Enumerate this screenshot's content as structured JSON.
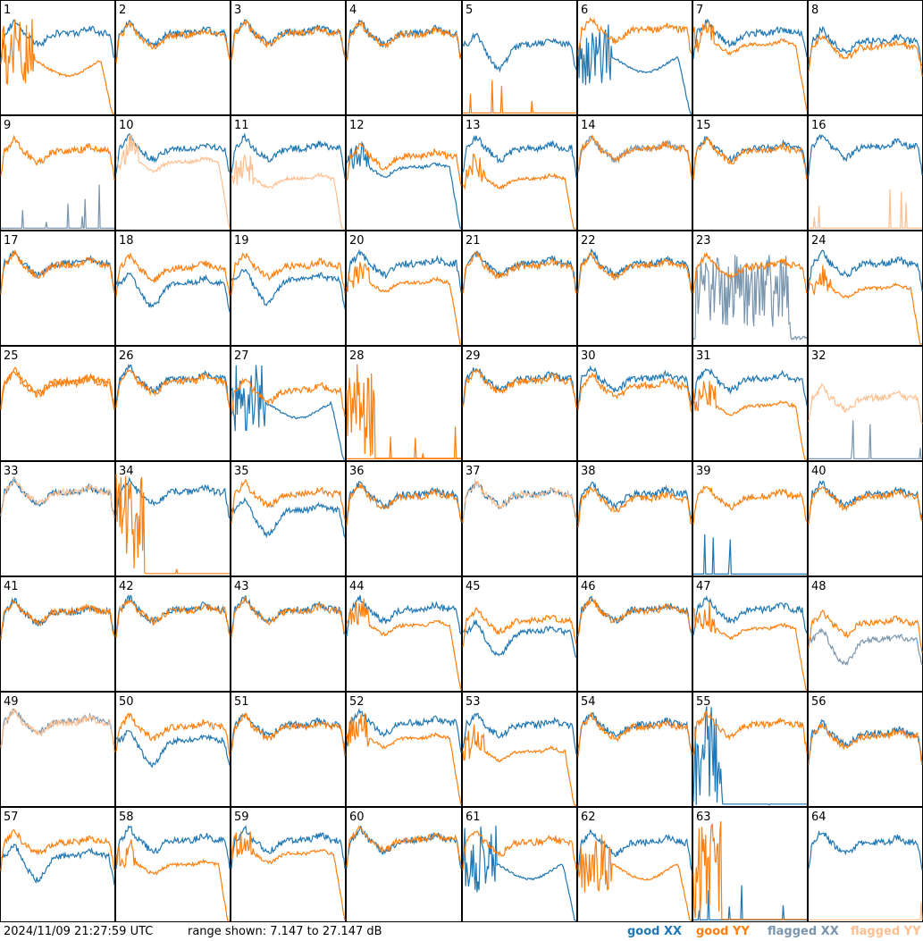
{
  "chart_data": {
    "type": "line",
    "timestamp": "2024/11/09 21:27:59 UTC",
    "range_text": "range shown: 7.147 to 27.147 dB",
    "range_db": [
      7.147,
      27.147
    ],
    "legend": [
      {
        "key": "gx",
        "label": "good XX",
        "color": "#1f77b4"
      },
      {
        "key": "gy",
        "label": "good YY",
        "color": "#ff7f0e"
      },
      {
        "key": "fx",
        "label": "flagged XX",
        "color": "#7a96ae"
      },
      {
        "key": "fy",
        "label": "flagged YY",
        "color": "#ffbf8f"
      }
    ],
    "panels": [
      {
        "label": "1",
        "x": {
          "s": "gx",
          "sh": "base",
          "lv": 0.72
        },
        "y": {
          "s": "gy",
          "sh": "noisy_drop",
          "lv": 0.42
        }
      },
      {
        "label": "2",
        "x": {
          "s": "gx",
          "sh": "base",
          "lv": 0.72
        },
        "y": {
          "s": "gy",
          "sh": "base",
          "lv": 0.7
        }
      },
      {
        "label": "3",
        "x": {
          "s": "gx",
          "sh": "base",
          "lv": 0.73
        },
        "y": {
          "s": "gy",
          "sh": "base",
          "lv": 0.72
        }
      },
      {
        "label": "4",
        "x": {
          "s": "gx",
          "sh": "base",
          "lv": 0.72
        },
        "y": {
          "s": "gy",
          "sh": "base",
          "lv": 0.71
        }
      },
      {
        "label": "5",
        "x": {
          "s": "gx",
          "sh": "dip",
          "lv": 0.62
        },
        "y": {
          "s": "gy",
          "sh": "spikes_low",
          "lv": 0.05
        }
      },
      {
        "label": "6",
        "x": {
          "s": "gx",
          "sh": "noisy_drop",
          "lv": 0.45
        },
        "y": {
          "s": "gy",
          "sh": "base",
          "lv": 0.75
        }
      },
      {
        "label": "7",
        "x": {
          "s": "gx",
          "sh": "base",
          "lv": 0.72
        },
        "y": {
          "s": "gy",
          "sh": "droop",
          "lv": 0.62
        }
      },
      {
        "label": "8",
        "x": {
          "s": "gx",
          "sh": "base",
          "lv": 0.65
        },
        "y": {
          "s": "gy",
          "sh": "base",
          "lv": 0.6
        }
      },
      {
        "label": "9",
        "x": {
          "s": "fx",
          "sh": "spikes_low",
          "lv": 0.12
        },
        "y": {
          "s": "gy",
          "sh": "base",
          "lv": 0.7
        }
      },
      {
        "label": "10",
        "x": {
          "s": "gx",
          "sh": "base",
          "lv": 0.72
        },
        "y": {
          "s": "fy",
          "sh": "droop",
          "lv": 0.6
        }
      },
      {
        "label": "11",
        "x": {
          "s": "gx",
          "sh": "base",
          "lv": 0.72
        },
        "y": {
          "s": "fy",
          "sh": "droop",
          "lv": 0.45
        }
      },
      {
        "label": "12",
        "x": {
          "s": "gx",
          "sh": "droop",
          "lv": 0.55
        },
        "y": {
          "s": "gy",
          "sh": "base",
          "lv": 0.65
        }
      },
      {
        "label": "13",
        "x": {
          "s": "gx",
          "sh": "base",
          "lv": 0.72
        },
        "y": {
          "s": "gy",
          "sh": "droop",
          "lv": 0.45
        }
      },
      {
        "label": "14",
        "x": {
          "s": "fx",
          "sh": "base",
          "lv": 0.72
        },
        "y": {
          "s": "gy",
          "sh": "base",
          "lv": 0.72
        }
      },
      {
        "label": "15",
        "x": {
          "s": "gx",
          "sh": "base",
          "lv": 0.72
        },
        "y": {
          "s": "gy",
          "sh": "base",
          "lv": 0.7
        }
      },
      {
        "label": "16",
        "x": {
          "s": "gx",
          "sh": "base",
          "lv": 0.74
        },
        "y": {
          "s": "fy",
          "sh": "spikes_low",
          "lv": 0.05
        }
      },
      {
        "label": "17",
        "x": {
          "s": "gx",
          "sh": "base",
          "lv": 0.72
        },
        "y": {
          "s": "gy",
          "sh": "base",
          "lv": 0.71
        }
      },
      {
        "label": "18",
        "x": {
          "s": "gx",
          "sh": "dip",
          "lv": 0.55
        },
        "y": {
          "s": "gy",
          "sh": "base",
          "lv": 0.68
        }
      },
      {
        "label": "19",
        "x": {
          "s": "gx",
          "sh": "dip",
          "lv": 0.58
        },
        "y": {
          "s": "gy",
          "sh": "base",
          "lv": 0.7
        }
      },
      {
        "label": "20",
        "x": {
          "s": "gx",
          "sh": "base",
          "lv": 0.72
        },
        "y": {
          "s": "gy",
          "sh": "droop",
          "lv": 0.55
        }
      },
      {
        "label": "21",
        "x": {
          "s": "gx",
          "sh": "base",
          "lv": 0.72
        },
        "y": {
          "s": "gy",
          "sh": "base",
          "lv": 0.7
        }
      },
      {
        "label": "22",
        "x": {
          "s": "gx",
          "sh": "base",
          "lv": 0.72
        },
        "y": {
          "s": "gy",
          "sh": "base",
          "lv": 0.7
        }
      },
      {
        "label": "23",
        "x": {
          "s": "fx",
          "sh": "noisy_mid",
          "lv": 0.5
        },
        "y": {
          "s": "gy",
          "sh": "base",
          "lv": 0.7
        }
      },
      {
        "label": "24",
        "x": {
          "s": "gx",
          "sh": "base",
          "lv": 0.72
        },
        "y": {
          "s": "gy",
          "sh": "droop",
          "lv": 0.5
        }
      },
      {
        "label": "25",
        "x": {
          "s": "gy",
          "sh": "base",
          "lv": 0.7
        },
        "y": {
          "s": "gy",
          "sh": "base",
          "lv": 0.68
        }
      },
      {
        "label": "26",
        "x": {
          "s": "gx",
          "sh": "base",
          "lv": 0.72
        },
        "y": {
          "s": "gy",
          "sh": "base",
          "lv": 0.7
        }
      },
      {
        "label": "27",
        "x": {
          "s": "gx",
          "sh": "noisy_drop",
          "lv": 0.45
        },
        "y": {
          "s": "gy",
          "sh": "base",
          "lv": 0.62
        }
      },
      {
        "label": "28",
        "x": {
          "s": "gy",
          "sh": "spikes_low",
          "lv": 0.05
        },
        "y": {
          "s": "gy",
          "sh": "noisy_left",
          "lv": 0.3
        }
      },
      {
        "label": "29",
        "x": {
          "s": "gx",
          "sh": "base",
          "lv": 0.72
        },
        "y": {
          "s": "gy",
          "sh": "base",
          "lv": 0.7
        }
      },
      {
        "label": "30",
        "x": {
          "s": "gx",
          "sh": "base",
          "lv": 0.72
        },
        "y": {
          "s": "gy",
          "sh": "base",
          "lv": 0.66
        }
      },
      {
        "label": "31",
        "x": {
          "s": "gx",
          "sh": "base",
          "lv": 0.72
        },
        "y": {
          "s": "gy",
          "sh": "droop",
          "lv": 0.48
        }
      },
      {
        "label": "32",
        "x": {
          "s": "fx",
          "sh": "spikes_low",
          "lv": 0.05
        },
        "y": {
          "s": "fy",
          "sh": "base",
          "lv": 0.55
        }
      },
      {
        "label": "33",
        "x": {
          "s": "gx",
          "sh": "base",
          "lv": 0.74
        },
        "y": {
          "s": "fy",
          "sh": "base",
          "lv": 0.74
        }
      },
      {
        "label": "34",
        "x": {
          "s": "gx",
          "sh": "base",
          "lv": 0.74
        },
        "y": {
          "s": "gy",
          "sh": "noisy_left",
          "lv": 0.3
        }
      },
      {
        "label": "35",
        "x": {
          "s": "gx",
          "sh": "dip",
          "lv": 0.58
        },
        "y": {
          "s": "gy",
          "sh": "base",
          "lv": 0.72
        }
      },
      {
        "label": "36",
        "x": {
          "s": "gx",
          "sh": "base",
          "lv": 0.72
        },
        "y": {
          "s": "gy",
          "sh": "base",
          "lv": 0.7
        }
      },
      {
        "label": "37",
        "x": {
          "s": "gx",
          "sh": "base",
          "lv": 0.72
        },
        "y": {
          "s": "fy",
          "sh": "base",
          "lv": 0.72
        }
      },
      {
        "label": "38",
        "x": {
          "s": "gx",
          "sh": "base",
          "lv": 0.72
        },
        "y": {
          "s": "gy",
          "sh": "base",
          "lv": 0.68
        }
      },
      {
        "label": "39",
        "x": {
          "s": "gx",
          "sh": "spikes_low",
          "lv": 0.05
        },
        "y": {
          "s": "gy",
          "sh": "base",
          "lv": 0.7
        }
      },
      {
        "label": "40",
        "x": {
          "s": "gx",
          "sh": "base",
          "lv": 0.72
        },
        "y": {
          "s": "gy",
          "sh": "base",
          "lv": 0.7
        }
      },
      {
        "label": "41",
        "x": {
          "s": "gx",
          "sh": "base",
          "lv": 0.7
        },
        "y": {
          "s": "gy",
          "sh": "base",
          "lv": 0.7
        }
      },
      {
        "label": "42",
        "x": {
          "s": "gx",
          "sh": "base",
          "lv": 0.72
        },
        "y": {
          "s": "gy",
          "sh": "base",
          "lv": 0.71
        }
      },
      {
        "label": "43",
        "x": {
          "s": "gx",
          "sh": "base",
          "lv": 0.72
        },
        "y": {
          "s": "gy",
          "sh": "base",
          "lv": 0.71
        }
      },
      {
        "label": "44",
        "x": {
          "s": "gx",
          "sh": "base",
          "lv": 0.72
        },
        "y": {
          "s": "gy",
          "sh": "droop",
          "lv": 0.58
        }
      },
      {
        "label": "45",
        "x": {
          "s": "gx",
          "sh": "dip",
          "lv": 0.52
        },
        "y": {
          "s": "gy",
          "sh": "base",
          "lv": 0.62
        }
      },
      {
        "label": "46",
        "x": {
          "s": "gx",
          "sh": "base",
          "lv": 0.72
        },
        "y": {
          "s": "gy",
          "sh": "base",
          "lv": 0.71
        }
      },
      {
        "label": "47",
        "x": {
          "s": "gx",
          "sh": "base",
          "lv": 0.72
        },
        "y": {
          "s": "gy",
          "sh": "droop",
          "lv": 0.55
        }
      },
      {
        "label": "48",
        "x": {
          "s": "fx",
          "sh": "dip",
          "lv": 0.45
        },
        "y": {
          "s": "gy",
          "sh": "base",
          "lv": 0.6
        }
      },
      {
        "label": "49",
        "x": {
          "s": "fx",
          "sh": "base",
          "lv": 0.75
        },
        "y": {
          "s": "fy",
          "sh": "base",
          "lv": 0.74
        }
      },
      {
        "label": "50",
        "x": {
          "s": "gx",
          "sh": "dip",
          "lv": 0.58
        },
        "y": {
          "s": "gy",
          "sh": "base",
          "lv": 0.7
        }
      },
      {
        "label": "51",
        "x": {
          "s": "gx",
          "sh": "base",
          "lv": 0.72
        },
        "y": {
          "s": "gy",
          "sh": "base",
          "lv": 0.7
        }
      },
      {
        "label": "52",
        "x": {
          "s": "gx",
          "sh": "base",
          "lv": 0.74
        },
        "y": {
          "s": "gy",
          "sh": "droop",
          "lv": 0.6
        }
      },
      {
        "label": "53",
        "x": {
          "s": "gx",
          "sh": "base",
          "lv": 0.72
        },
        "y": {
          "s": "gy",
          "sh": "droop",
          "lv": 0.48
        }
      },
      {
        "label": "54",
        "x": {
          "s": "gx",
          "sh": "base",
          "lv": 0.72
        },
        "y": {
          "s": "gy",
          "sh": "base",
          "lv": 0.7
        }
      },
      {
        "label": "55",
        "x": {
          "s": "gx",
          "sh": "noisy_left",
          "lv": 0.2
        },
        "y": {
          "s": "gy",
          "sh": "base",
          "lv": 0.72
        }
      },
      {
        "label": "56",
        "x": {
          "s": "gx",
          "sh": "base",
          "lv": 0.64
        },
        "y": {
          "s": "gy",
          "sh": "base",
          "lv": 0.62
        }
      },
      {
        "label": "57",
        "x": {
          "s": "gx",
          "sh": "dip",
          "lv": 0.58
        },
        "y": {
          "s": "gy",
          "sh": "base",
          "lv": 0.7
        }
      },
      {
        "label": "58",
        "x": {
          "s": "gx",
          "sh": "base",
          "lv": 0.72
        },
        "y": {
          "s": "gy",
          "sh": "droop",
          "lv": 0.5
        }
      },
      {
        "label": "59",
        "x": {
          "s": "gx",
          "sh": "base",
          "lv": 0.72
        },
        "y": {
          "s": "gy",
          "sh": "droop",
          "lv": 0.6
        }
      },
      {
        "label": "60",
        "x": {
          "s": "gx",
          "sh": "base",
          "lv": 0.72
        },
        "y": {
          "s": "gy",
          "sh": "base",
          "lv": 0.73
        }
      },
      {
        "label": "61",
        "x": {
          "s": "gx",
          "sh": "noisy_drop",
          "lv": 0.45
        },
        "y": {
          "s": "gy",
          "sh": "base",
          "lv": 0.7
        }
      },
      {
        "label": "62",
        "x": {
          "s": "gx",
          "sh": "base",
          "lv": 0.7
        },
        "y": {
          "s": "gy",
          "sh": "noisy_drop",
          "lv": 0.45
        }
      },
      {
        "label": "63",
        "x": {
          "s": "gx",
          "sh": "spikes_low",
          "lv": 0.03
        },
        "y": {
          "s": "gy",
          "sh": "noisy_left",
          "lv": 0.3
        }
      },
      {
        "label": "64",
        "x": {
          "s": "gx",
          "sh": "base",
          "lv": 0.7
        },
        "y": {
          "s": "fy",
          "sh": "spikes_low",
          "lv": 0.05
        }
      }
    ]
  }
}
